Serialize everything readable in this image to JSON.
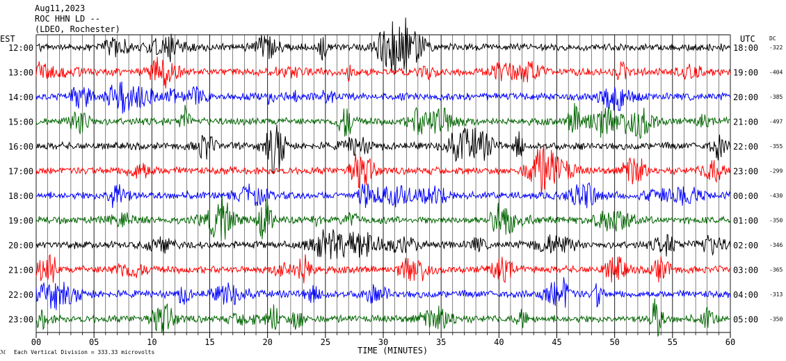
{
  "header": {
    "date": "Aug11,2023",
    "station": "ROC HHN LD --",
    "network": "(LDEO, Rochester)"
  },
  "left_axis_label": "EST",
  "right_axis_label": "UTC",
  "dc_label": "DC",
  "footer": {
    "scale_note": "Each Vertical Division =  333.33 microvolts",
    "xlabel": "TIME (MINUTES)"
  },
  "colors": {
    "cycle": [
      "#000000",
      "#ff0000",
      "#0000ff",
      "#006600"
    ],
    "grid": "#000000",
    "background": "#ffffff"
  },
  "chart_data": {
    "type": "line",
    "title": "ROC HHN LD -- (LDEO, Rochester) Aug11,2023",
    "xlabel": "TIME (MINUTES)",
    "xlim": [
      0,
      60
    ],
    "x_ticks": [
      "00",
      "05",
      "10",
      "15",
      "20",
      "25",
      "30",
      "35",
      "40",
      "45",
      "50",
      "55",
      "60"
    ],
    "grid": true,
    "rows": [
      {
        "est": "12:00",
        "utc": "18:00",
        "dc": "-322",
        "color": "#000000"
      },
      {
        "est": "13:00",
        "utc": "19:00",
        "dc": "-404",
        "color": "#ff0000"
      },
      {
        "est": "14:00",
        "utc": "20:00",
        "dc": "-385",
        "color": "#0000ff"
      },
      {
        "est": "15:00",
        "utc": "21:00",
        "dc": "-497",
        "color": "#006600"
      },
      {
        "est": "16:00",
        "utc": "22:00",
        "dc": "-355",
        "color": "#000000"
      },
      {
        "est": "17:00",
        "utc": "23:00",
        "dc": "-299",
        "color": "#ff0000"
      },
      {
        "est": "18:00",
        "utc": "00:00",
        "dc": "-430",
        "color": "#0000ff"
      },
      {
        "est": "19:00",
        "utc": "01:00",
        "dc": "-350",
        "color": "#006600"
      },
      {
        "est": "20:00",
        "utc": "02:00",
        "dc": "-346",
        "color": "#000000"
      },
      {
        "est": "21:00",
        "utc": "03:00",
        "dc": "-365",
        "color": "#ff0000"
      },
      {
        "est": "22:00",
        "utc": "04:00",
        "dc": "-313",
        "color": "#0000ff"
      },
      {
        "est": "23:00",
        "utc": "05:00",
        "dc": "-350",
        "color": "#006600"
      }
    ]
  }
}
